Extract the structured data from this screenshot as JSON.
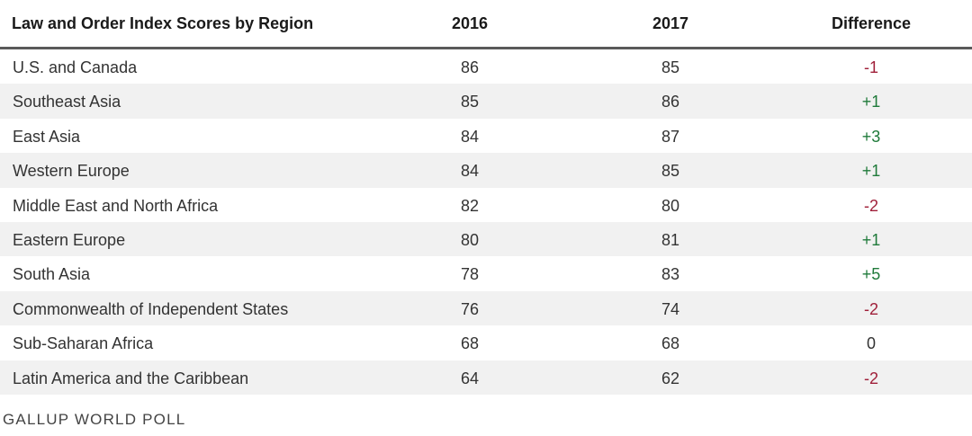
{
  "chart_data": {
    "type": "table",
    "columns": [
      "Law and Order Index Scores by Region",
      "2016",
      "2017",
      "Difference"
    ],
    "rows": [
      {
        "region": "U.S. and Canada",
        "y2016": "86",
        "y2017": "85",
        "diff": "-1"
      },
      {
        "region": "Southeast Asia",
        "y2016": "85",
        "y2017": "86",
        "diff": "+1"
      },
      {
        "region": "East Asia",
        "y2016": "84",
        "y2017": "87",
        "diff": "+3"
      },
      {
        "region": "Western Europe",
        "y2016": "84",
        "y2017": "85",
        "diff": "+1"
      },
      {
        "region": "Middle East and North Africa",
        "y2016": "82",
        "y2017": "80",
        "diff": "-2"
      },
      {
        "region": "Eastern Europe",
        "y2016": "80",
        "y2017": "81",
        "diff": "+1"
      },
      {
        "region": "South Asia",
        "y2016": "78",
        "y2017": "83",
        "diff": "+5"
      },
      {
        "region": "Commonwealth of Independent States",
        "y2016": "76",
        "y2017": "74",
        "diff": "-2"
      },
      {
        "region": "Sub-Saharan Africa",
        "y2016": "68",
        "y2017": "68",
        "diff": "0"
      },
      {
        "region": "Latin America and the Caribbean",
        "y2016": "64",
        "y2017": "62",
        "diff": "-2"
      }
    ],
    "source": "GALLUP WORLD POLL",
    "colors": {
      "negative": "#a0203a",
      "positive": "#1f7a3a",
      "stripe": "#f1f1f1",
      "rule": "#5a5a5a"
    }
  }
}
